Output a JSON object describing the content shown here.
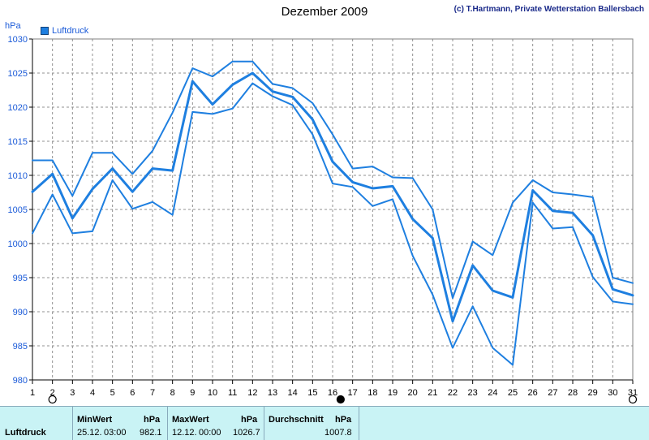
{
  "header": {
    "title": "Dezember 2009",
    "credit": "(c) T.Hartmann, Private Wetterstation Ballersbach",
    "unit": "hPa",
    "legend_label": "Luftdruck"
  },
  "colors": {
    "line": "#1e7fe0",
    "grid": "#909090",
    "axis": "#000000",
    "stats_bg": "#c9f3f5"
  },
  "chart_data": {
    "type": "line",
    "title": "Dezember 2009",
    "ylabel": "hPa",
    "xlabel": "",
    "ylim": [
      980,
      1030
    ],
    "xlim": [
      1,
      31
    ],
    "y_ticks": [
      980,
      985,
      990,
      995,
      1000,
      1005,
      1010,
      1015,
      1020,
      1025,
      1030
    ],
    "x_ticks": [
      1,
      2,
      3,
      4,
      5,
      6,
      7,
      8,
      9,
      10,
      11,
      12,
      13,
      14,
      15,
      16,
      17,
      18,
      19,
      20,
      21,
      22,
      23,
      24,
      25,
      26,
      27,
      28,
      29,
      30,
      31
    ],
    "grid": true,
    "legend": "top-left",
    "markers": [
      {
        "x": 2,
        "shape": "open-circle"
      },
      {
        "x": 16.4,
        "shape": "filled-circle"
      },
      {
        "x": 31,
        "shape": "open-circle"
      }
    ],
    "x": [
      1,
      2,
      3,
      4,
      5,
      6,
      7,
      8,
      9,
      10,
      11,
      12,
      13,
      14,
      15,
      16,
      17,
      18,
      19,
      20,
      21,
      22,
      23,
      24,
      25,
      26,
      27,
      28,
      29,
      30,
      31
    ],
    "series": [
      {
        "name": "Luftdruck",
        "role": "max",
        "width": 2,
        "values": [
          1012.2,
          1012.2,
          1007.0,
          1013.3,
          1013.3,
          1010.2,
          1013.6,
          1019.2,
          1025.7,
          1024.5,
          1026.7,
          1026.7,
          1023.4,
          1022.8,
          1020.6,
          1016.0,
          1011.0,
          1011.3,
          1009.7,
          1009.6,
          1005.0,
          992.0,
          1000.3,
          998.3,
          1006.0,
          1009.3,
          1007.5,
          1007.2,
          1006.8,
          995.0,
          994.2
        ]
      },
      {
        "name": "Luftdruck",
        "role": "mean",
        "width": 3,
        "values": [
          1007.6,
          1010.2,
          1003.7,
          1008.0,
          1011.0,
          1007.6,
          1011.0,
          1010.7,
          1023.8,
          1020.4,
          1023.3,
          1025.0,
          1022.3,
          1021.5,
          1018.2,
          1012.0,
          1009.0,
          1008.1,
          1008.4,
          1003.6,
          1000.8,
          988.6,
          996.8,
          993.1,
          992.1,
          1007.8,
          1004.8,
          1004.5,
          1001.2,
          993.3,
          992.4
        ]
      },
      {
        "name": "Luftdruck",
        "role": "min",
        "width": 2,
        "values": [
          1001.5,
          1007.2,
          1001.5,
          1001.8,
          1009.3,
          1005.1,
          1006.1,
          1004.2,
          1019.3,
          1019.0,
          1019.8,
          1023.5,
          1021.6,
          1020.3,
          1016.0,
          1008.8,
          1008.3,
          1005.5,
          1006.5,
          998.2,
          992.5,
          984.7,
          990.8,
          984.7,
          982.2,
          1006.0,
          1002.2,
          1002.4,
          995.1,
          991.5,
          991.1
        ]
      }
    ]
  },
  "stats_panel": {
    "row_label": "Luftdruck",
    "min": {
      "header": "MinWert",
      "unit": "hPa",
      "date": "25.12.",
      "time": "03:00",
      "value": "982.1"
    },
    "max": {
      "header": "MaxWert",
      "unit": "hPa",
      "date": "12.12.",
      "time": "00:00",
      "value": "1026.7"
    },
    "avg": {
      "header": "Durchschnitt",
      "unit": "hPa",
      "value": "1007.8"
    }
  }
}
